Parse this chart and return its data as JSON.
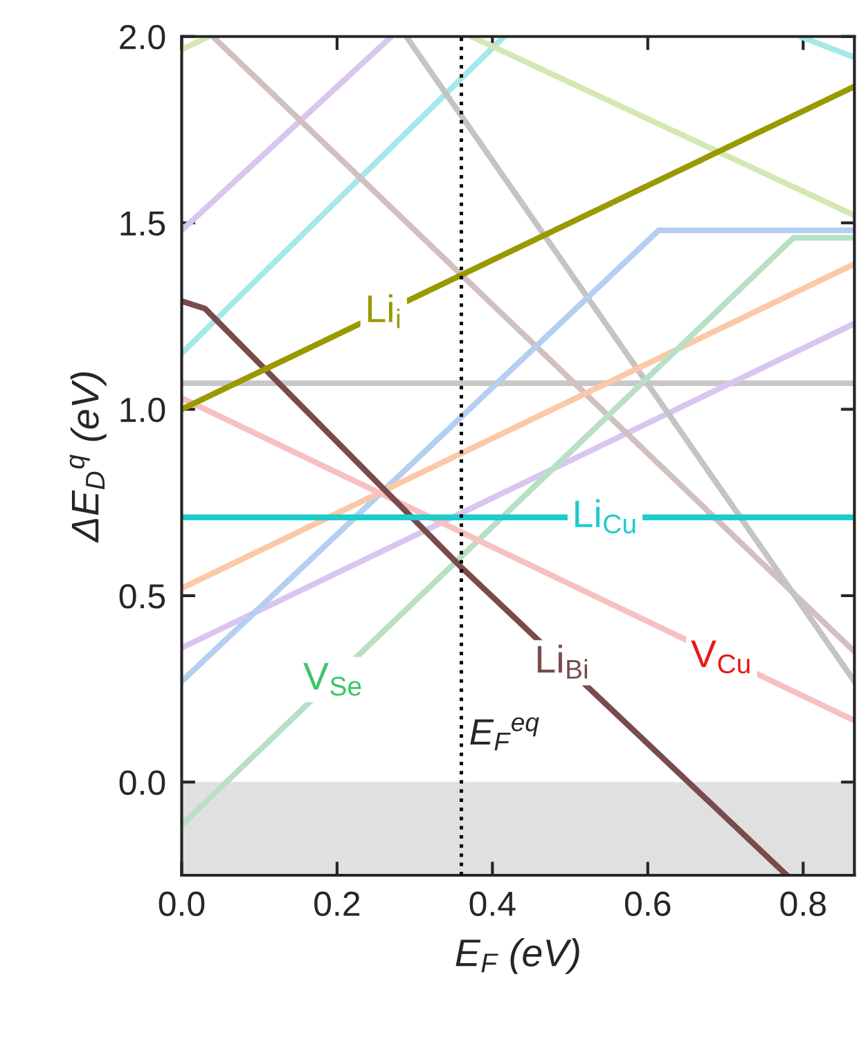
{
  "chart_data": {
    "type": "line",
    "xlabel": "E$_{F}$ (eV)",
    "ylabel": "ΔE$_{D}$$^{q}$ (eV)",
    "xlim": [
      0,
      0.866
    ],
    "ylim": [
      -0.25,
      2.0
    ],
    "xticks": [
      {
        "value": 0,
        "label": "0.0"
      },
      0.2,
      0.4,
      0.6,
      0.8
    ],
    "yticks": [
      {
        "value": 0,
        "label": "0.0"
      },
      0.5,
      {
        "value": 1,
        "label": "1.0"
      },
      1.5,
      {
        "value": 2,
        "label": "2.0"
      }
    ],
    "grid": false,
    "marker": "none",
    "line_style": "solid",
    "series": [
      {
        "color": "#c8c8c8",
        "x": [
          0,
          0.866
        ],
        "values": [
          1.07,
          1.07
        ]
      },
      {
        "color": "#d9c6f0",
        "x": [
          0,
          0.27
        ],
        "values": [
          1.48,
          2.0
        ]
      },
      {
        "color": "#d9c6f0",
        "x": [
          0,
          0.866
        ],
        "values": [
          0.36,
          1.23
        ]
      },
      {
        "color": "#a6e8e8",
        "x": [
          0,
          0.415
        ],
        "values": [
          1.15,
          2.0
        ]
      },
      {
        "color": "#a6e8e8",
        "x": [
          0.796,
          0.866
        ],
        "values": [
          2.0,
          1.944
        ]
      },
      {
        "color": "#d4e8b4",
        "x": [
          0,
          0.035
        ],
        "values": [
          1.965,
          2.0
        ]
      },
      {
        "color": "#d4e8b4",
        "x": [
          0.373,
          0.866
        ],
        "values": [
          2.0,
          1.52
        ]
      },
      {
        "color": "#d2c0c0",
        "x": [
          0.04,
          0.866
        ],
        "values": [
          2.0,
          0.35
        ]
      },
      {
        "color": "#c4c4c4",
        "x": [
          0.289,
          0.866
        ],
        "values": [
          2.0,
          0.27
        ]
      },
      {
        "color": "#b4cff2",
        "x": [
          0,
          0.614,
          0.866
        ],
        "values": [
          0.27,
          1.48,
          1.48
        ]
      },
      {
        "color": "#fcc8a8",
        "x": [
          0,
          0.866
        ],
        "values": [
          0.52,
          1.39
        ]
      },
      {
        "color": "#b8e0c4",
        "x": [
          0,
          0.7875,
          0.866
        ],
        "values": [
          -0.115,
          1.46,
          1.46
        ]
      },
      {
        "color": "#f8c0c0",
        "x": [
          0,
          0.866
        ],
        "values": [
          1.03,
          0.165
        ]
      },
      {
        "color": "#7a4b4b",
        "x": [
          0,
          0.03,
          0.36,
          0.779
        ],
        "values": [
          1.29,
          1.27,
          0.576,
          -0.25
        ]
      },
      {
        "color": "#1ecccc",
        "x": [
          0,
          0.866
        ],
        "values": [
          0.71,
          0.71
        ]
      },
      {
        "color": "#999900",
        "x": [
          0,
          0.866
        ],
        "values": [
          1.0,
          1.866
        ]
      }
    ],
    "annotations": [
      {
        "text": "Li$_{i}$",
        "x": 0.26,
        "y": 1.26
      },
      {
        "text": "Li$_{Cu}$",
        "x": 0.545,
        "y": 0.71
      },
      {
        "text": "Li$_{Bi}$",
        "x": 0.49,
        "y": 0.32
      },
      {
        "text": "V$_{Cu}$",
        "x": 0.695,
        "y": 0.335
      },
      {
        "text": "V$_{Se}$",
        "x": 0.195,
        "y": 0.275
      }
    ],
    "ref_lines": [
      {
        "axis": "x",
        "value": 0.36,
        "label": "E$_{F}$$^{eq}$",
        "color": "#000000",
        "line_style": "dotted"
      }
    ],
    "bands": [
      {
        "axis": "y",
        "from": -0.25,
        "to": 0.0,
        "color": "#e0e0e0"
      }
    ]
  }
}
